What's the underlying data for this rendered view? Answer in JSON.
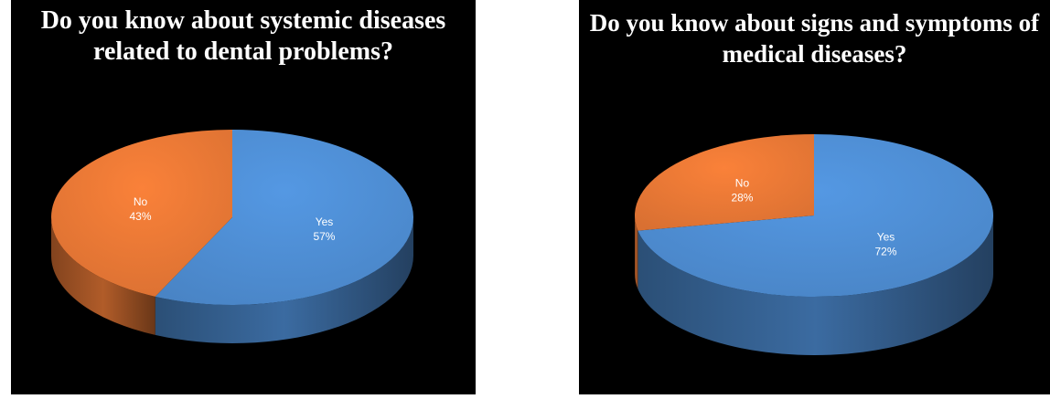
{
  "chart_data": [
    {
      "type": "pie",
      "title": "Do you know about systemic diseases related to dental problems?",
      "title_lines": [
        "Do you know about systemic diseases",
        "related to dental problems?"
      ],
      "categories": [
        "Yes",
        "No"
      ],
      "values": [
        57,
        43
      ],
      "value_labels": [
        "57%",
        "43%"
      ],
      "colors": [
        "#4f8fd6",
        "#ec7a36"
      ]
    },
    {
      "type": "pie",
      "title": "Do you know about signs and symptoms of medical diseases?",
      "title_lines": [
        "Do you know about signs and symptoms of",
        "medical diseases?"
      ],
      "categories": [
        "Yes",
        "No"
      ],
      "values": [
        72,
        28
      ],
      "value_labels": [
        "72%",
        "28%"
      ],
      "colors": [
        "#4f8fd6",
        "#ec7a36"
      ]
    }
  ]
}
